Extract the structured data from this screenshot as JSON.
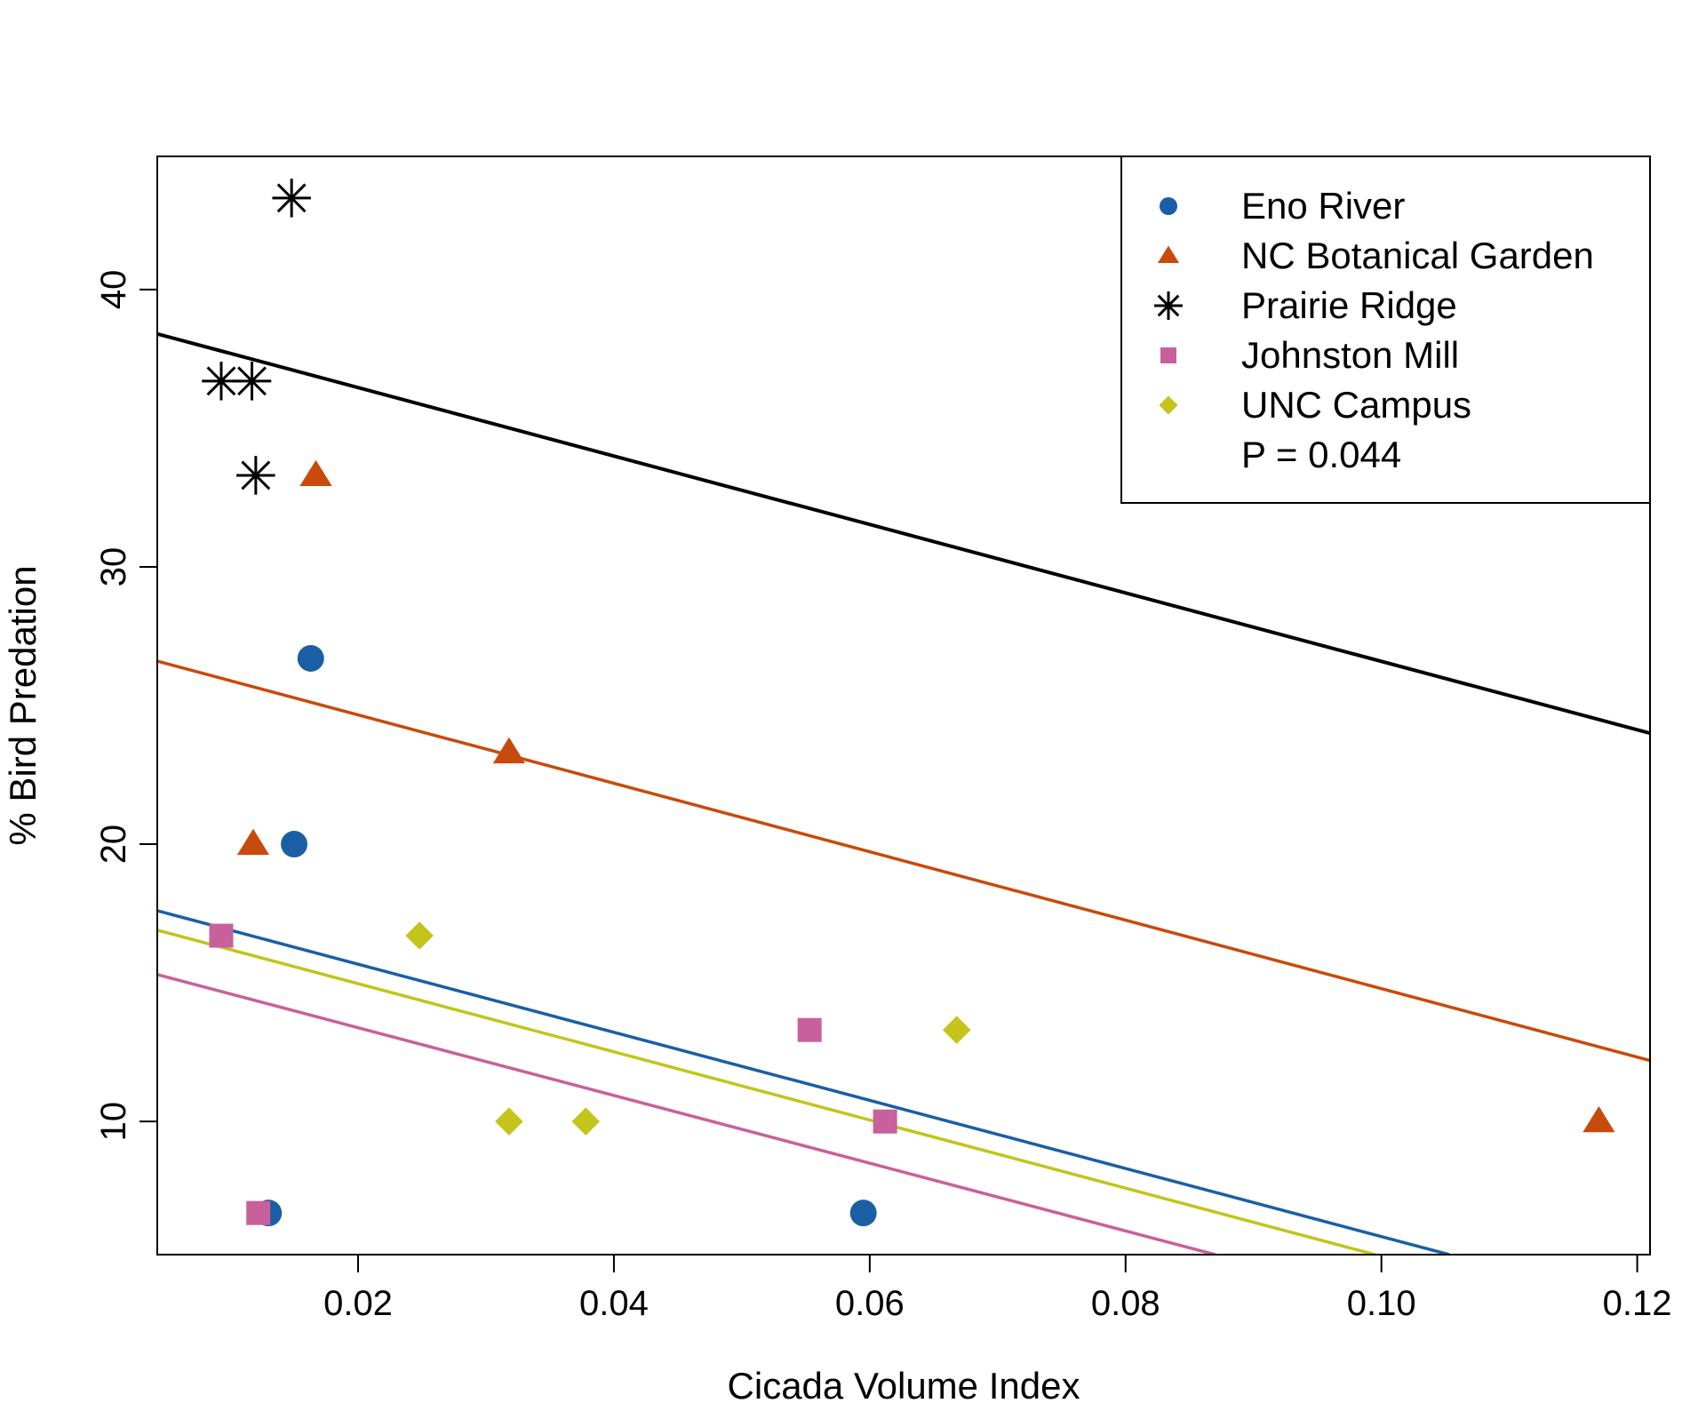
{
  "chart_data": {
    "type": "scatter",
    "title": "",
    "xlabel": "Cicada Volume Index",
    "ylabel": "% Bird Predation",
    "xlim": [
      0.0043,
      0.121
    ],
    "ylim": [
      5.2,
      44.8
    ],
    "xticks": [
      0.02,
      0.04,
      0.06,
      0.08,
      0.1,
      0.12
    ],
    "xtick_labels": [
      "0.02",
      "0.04",
      "0.06",
      "0.08",
      "0.10",
      "0.12"
    ],
    "yticks": [
      10,
      20,
      30,
      40
    ],
    "ytick_labels": [
      "10",
      "20",
      "30",
      "40"
    ],
    "grid": false,
    "legend_position": "top-right",
    "annotation": "P = 0.044",
    "series": [
      {
        "name": "Eno River",
        "color": "#1a5fa5",
        "marker": "circle",
        "points": [
          [
            0.0163,
            26.7
          ],
          [
            0.015,
            20.0
          ],
          [
            0.013,
            6.7
          ],
          [
            0.0595,
            6.7
          ]
        ],
        "fit_line": [
          [
            0.0043,
            17.6
          ],
          [
            0.1053,
            5.2
          ]
        ]
      },
      {
        "name": "NC Botanical Garden",
        "color": "#c84a0c",
        "marker": "triangle",
        "points": [
          [
            0.0167,
            33.3
          ],
          [
            0.0118,
            20.0
          ],
          [
            0.0318,
            23.3
          ],
          [
            0.117,
            10.0
          ]
        ],
        "fit_line": [
          [
            0.0043,
            26.6
          ],
          [
            0.121,
            12.2
          ]
        ]
      },
      {
        "name": "Prairie Ridge",
        "color": "#000000",
        "marker": "asterisk",
        "points": [
          [
            0.0148,
            43.3
          ],
          [
            0.0093,
            36.7
          ],
          [
            0.0117,
            36.7
          ],
          [
            0.012,
            33.3
          ]
        ],
        "fit_line": [
          [
            0.0043,
            38.4
          ],
          [
            0.121,
            24.0
          ]
        ]
      },
      {
        "name": "Johnston Mill",
        "color": "#c8609c",
        "marker": "square",
        "points": [
          [
            0.0093,
            16.7
          ],
          [
            0.0122,
            6.7
          ],
          [
            0.0553,
            13.3
          ],
          [
            0.0612,
            10.0
          ]
        ],
        "fit_line": [
          [
            0.0043,
            15.3
          ],
          [
            0.087,
            5.2
          ]
        ]
      },
      {
        "name": "UNC Campus",
        "color": "#c4c41a",
        "marker": "diamond",
        "points": [
          [
            0.0248,
            16.7
          ],
          [
            0.0318,
            10.0
          ],
          [
            0.0378,
            10.0
          ],
          [
            0.0668,
            13.3
          ]
        ],
        "fit_line": [
          [
            0.0043,
            16.9
          ],
          [
            0.0995,
            5.2
          ]
        ]
      }
    ]
  }
}
